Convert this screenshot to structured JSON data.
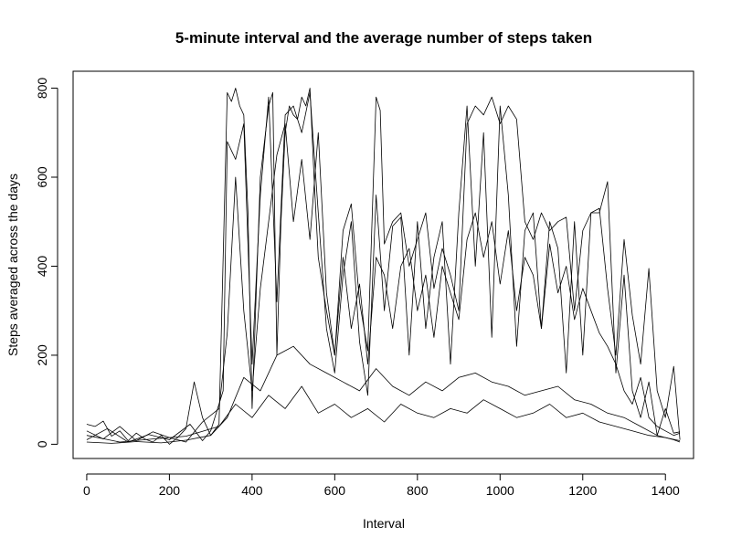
{
  "chart_data": {
    "type": "line",
    "title": "5-minute interval and the average number of steps taken",
    "xlabel": "Interval",
    "ylabel": "Steps averaged across the days",
    "xlim": [
      -33,
      1468
    ],
    "ylim": [
      -32,
      838
    ],
    "xticks": [
      0,
      200,
      400,
      600,
      800,
      1000,
      1200,
      1400
    ],
    "yticks": [
      0,
      200,
      400,
      600,
      800
    ],
    "line_color": "#000000",
    "grid": false,
    "legend": "none",
    "series": [
      {
        "x": [
          0,
          20,
          40,
          60,
          80,
          100,
          120,
          140,
          160,
          180,
          200,
          220,
          240,
          260,
          280,
          300,
          320,
          340,
          350,
          360,
          370,
          380,
          390,
          400,
          420,
          440,
          450,
          460,
          470,
          480,
          490,
          500,
          510,
          520,
          530,
          540,
          550,
          560,
          580,
          600,
          620,
          640,
          660,
          680,
          700,
          710,
          720,
          740,
          760,
          780,
          800,
          820,
          840,
          860,
          880,
          900,
          920,
          940,
          960,
          980,
          1000,
          1020,
          1040,
          1060,
          1080,
          1100,
          1120,
          1140,
          1160,
          1180,
          1200,
          1220,
          1240,
          1260,
          1280,
          1300,
          1320,
          1340,
          1360,
          1380,
          1400,
          1420,
          1435
        ],
        "y": [
          45,
          40,
          52,
          18,
          30,
          8,
          25,
          12,
          5,
          20,
          0,
          15,
          35,
          140,
          60,
          20,
          45,
          790,
          770,
          800,
          760,
          740,
          520,
          80,
          600,
          760,
          790,
          200,
          500,
          700,
          760,
          740,
          730,
          780,
          760,
          800,
          600,
          420,
          300,
          200,
          480,
          540,
          320,
          210,
          780,
          750,
          450,
          500,
          520,
          400,
          460,
          520,
          350,
          440,
          380,
          300,
          720,
          760,
          740,
          780,
          720,
          760,
          730,
          500,
          460,
          520,
          480,
          500,
          510,
          300,
          480,
          520,
          530,
          350,
          200,
          460,
          290,
          180,
          395,
          120,
          60,
          175,
          10
        ]
      },
      {
        "x": [
          0,
          50,
          100,
          150,
          200,
          250,
          280,
          300,
          330,
          340,
          360,
          380,
          400,
          420,
          440,
          460,
          480,
          500,
          520,
          540,
          560,
          580,
          600,
          620,
          640,
          660,
          680,
          700,
          720,
          740,
          760,
          780,
          800,
          820,
          840,
          860,
          880,
          900,
          920,
          940,
          960,
          980,
          1000,
          1020,
          1040,
          1060,
          1080,
          1100,
          1120,
          1140,
          1160,
          1180,
          1200,
          1220,
          1240,
          1260,
          1280,
          1300,
          1320,
          1340,
          1360,
          1380,
          1400,
          1420,
          1435
        ],
        "y": [
          10,
          35,
          5,
          22,
          10,
          45,
          8,
          30,
          120,
          680,
          640,
          720,
          180,
          560,
          780,
          320,
          740,
          760,
          700,
          790,
          520,
          260,
          160,
          380,
          500,
          230,
          110,
          560,
          300,
          490,
          510,
          200,
          500,
          260,
          420,
          500,
          180,
          520,
          760,
          400,
          700,
          240,
          760,
          560,
          220,
          480,
          520,
          260,
          500,
          440,
          160,
          500,
          200,
          520,
          520,
          590,
          160,
          380,
          120,
          60,
          140,
          20,
          80,
          25,
          28
        ]
      },
      {
        "x": [
          0,
          40,
          80,
          120,
          160,
          200,
          240,
          280,
          320,
          340,
          360,
          380,
          400,
          420,
          440,
          460,
          480,
          500,
          520,
          540,
          560,
          580,
          600,
          620,
          640,
          660,
          680,
          700,
          720,
          740,
          760,
          780,
          800,
          820,
          840,
          860,
          880,
          900,
          920,
          940,
          960,
          980,
          1000,
          1020,
          1040,
          1060,
          1080,
          1100,
          1120,
          1140,
          1160,
          1180,
          1200,
          1220,
          1240,
          1260,
          1280,
          1300,
          1320,
          1340,
          1360,
          1380,
          1400,
          1420,
          1435
        ],
        "y": [
          30,
          12,
          40,
          8,
          28,
          15,
          5,
          50,
          80,
          250,
          600,
          300,
          120,
          350,
          500,
          650,
          720,
          500,
          640,
          460,
          700,
          340,
          200,
          420,
          260,
          360,
          180,
          420,
          380,
          260,
          400,
          440,
          300,
          380,
          240,
          400,
          340,
          280,
          460,
          520,
          420,
          500,
          360,
          480,
          300,
          420,
          380,
          260,
          450,
          340,
          400,
          280,
          350,
          300,
          250,
          220,
          180,
          120,
          90,
          150,
          60,
          40,
          30,
          20,
          25
        ]
      },
      {
        "x": [
          0,
          60,
          120,
          180,
          240,
          300,
          340,
          380,
          420,
          460,
          500,
          540,
          580,
          620,
          660,
          700,
          740,
          780,
          820,
          860,
          900,
          940,
          980,
          1020,
          1060,
          1100,
          1140,
          1180,
          1220,
          1260,
          1300,
          1340,
          1380,
          1420,
          1435
        ],
        "y": [
          5,
          2,
          6,
          3,
          9,
          20,
          60,
          150,
          120,
          200,
          220,
          180,
          160,
          140,
          120,
          170,
          130,
          110,
          140,
          120,
          150,
          160,
          140,
          130,
          110,
          120,
          130,
          100,
          90,
          70,
          60,
          40,
          20,
          10,
          5
        ]
      },
      {
        "x": [
          0,
          80,
          160,
          240,
          320,
          360,
          400,
          440,
          480,
          520,
          560,
          600,
          640,
          680,
          720,
          760,
          800,
          840,
          880,
          920,
          960,
          1000,
          1040,
          1080,
          1120,
          1160,
          1200,
          1240,
          1280,
          1320,
          1360,
          1400,
          1435
        ],
        "y": [
          20,
          5,
          12,
          18,
          40,
          90,
          60,
          110,
          80,
          130,
          70,
          90,
          60,
          80,
          50,
          90,
          70,
          60,
          80,
          70,
          100,
          80,
          60,
          70,
          90,
          60,
          70,
          50,
          40,
          30,
          20,
          15,
          8
        ]
      }
    ]
  }
}
